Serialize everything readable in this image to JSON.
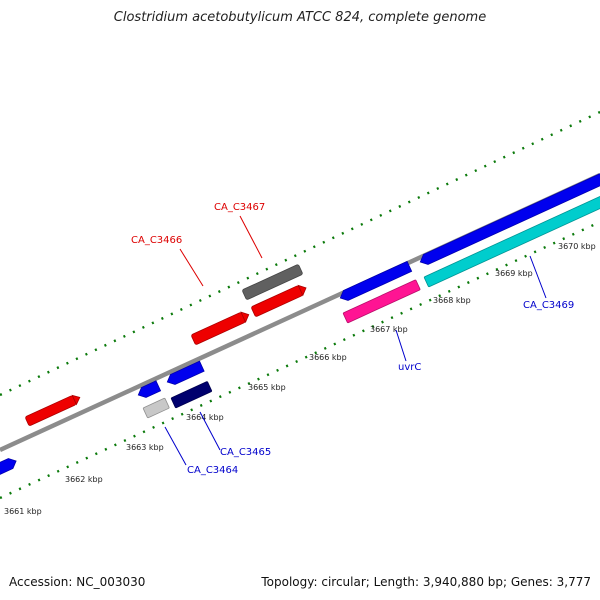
{
  "map": {
    "title": "Clostridium acetobutylicum ATCC 824, complete genome",
    "accession": "Accession: NC_003030",
    "stats": "Topology: circular; Length: 3,940,880 bp; Genes: 3,777"
  },
  "colors": {
    "backbone": "#8c8c8c",
    "tick": "#0b7a0b",
    "red": "#ee0000",
    "gray": "#606060",
    "blue": "#0000ee",
    "navy": "#00006e",
    "lightgray": "#c8c8c8",
    "pink": "#ff1493",
    "cyan": "#00cdcd",
    "label_red": "#dd0000",
    "label_blue": "#0000cc"
  },
  "scale_labels": [
    "3661 kbp",
    "3662 kbp",
    "3663 kbp",
    "3664 kbp",
    "3665 kbp",
    "3666 kbp",
    "3667 kbp",
    "3668 kbp",
    "3669 kbp",
    "3670 kbp"
  ],
  "gene_labels": {
    "ca_c3466": "CA_C3466",
    "ca_c3467": "CA_C3467",
    "ca_c3464": "CA_C3464",
    "ca_c3465": "CA_C3465",
    "uvrc": "uvrC",
    "ca_c3469": "CA_C3469"
  },
  "legend": []
}
